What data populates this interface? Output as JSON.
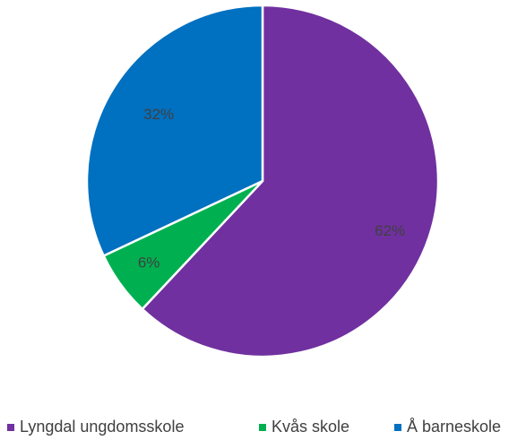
{
  "chart_data": {
    "type": "pie",
    "categories": [
      "Lyngdal ungdomsskole",
      "Kvås skole",
      "Å barneskole"
    ],
    "values": [
      62,
      6,
      32
    ],
    "labels": [
      "62%",
      "6%",
      "32%"
    ],
    "colors": [
      "#7030A0",
      "#00B050",
      "#0070C0"
    ],
    "legend_position": "bottom",
    "start_angle_deg": 0,
    "direction": "clockwise"
  }
}
